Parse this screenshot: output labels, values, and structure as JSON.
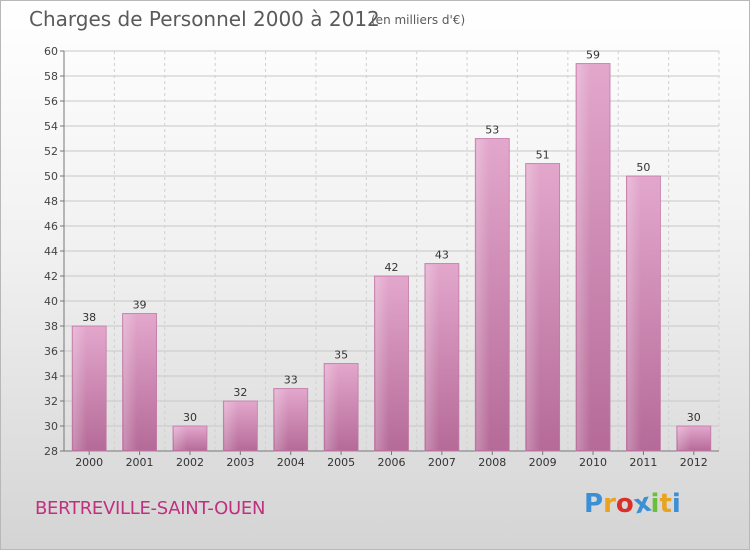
{
  "header": {
    "title": "Charges de Personnel 2000 à 2012",
    "subtitle": "(en milliers d'€)"
  },
  "footer": {
    "city": "BERTREVILLE-SAINT-OUEN",
    "logo_text": "Proxiti",
    "logo_colors": [
      "#3b8fd4",
      "#e8a320",
      "#d9302a",
      "#3b8fd4",
      "#6abf3b",
      "#e8a320",
      "#3b8fd4"
    ]
  },
  "chart_data": {
    "type": "bar",
    "title": "Charges de Personnel 2000 à 2012",
    "subtitle": "(en milliers d'€)",
    "categories": [
      "2000",
      "2001",
      "2002",
      "2003",
      "2004",
      "2005",
      "2006",
      "2007",
      "2008",
      "2009",
      "2010",
      "2011",
      "2012"
    ],
    "values": [
      38,
      39,
      30,
      32,
      33,
      35,
      42,
      43,
      53,
      51,
      59,
      50,
      30
    ],
    "ylim": [
      28,
      60
    ],
    "yticks": [
      28,
      30,
      32,
      34,
      36,
      38,
      40,
      42,
      44,
      46,
      48,
      50,
      52,
      54,
      56,
      58,
      60
    ],
    "grid": true,
    "bar_color": "#d889b8"
  }
}
